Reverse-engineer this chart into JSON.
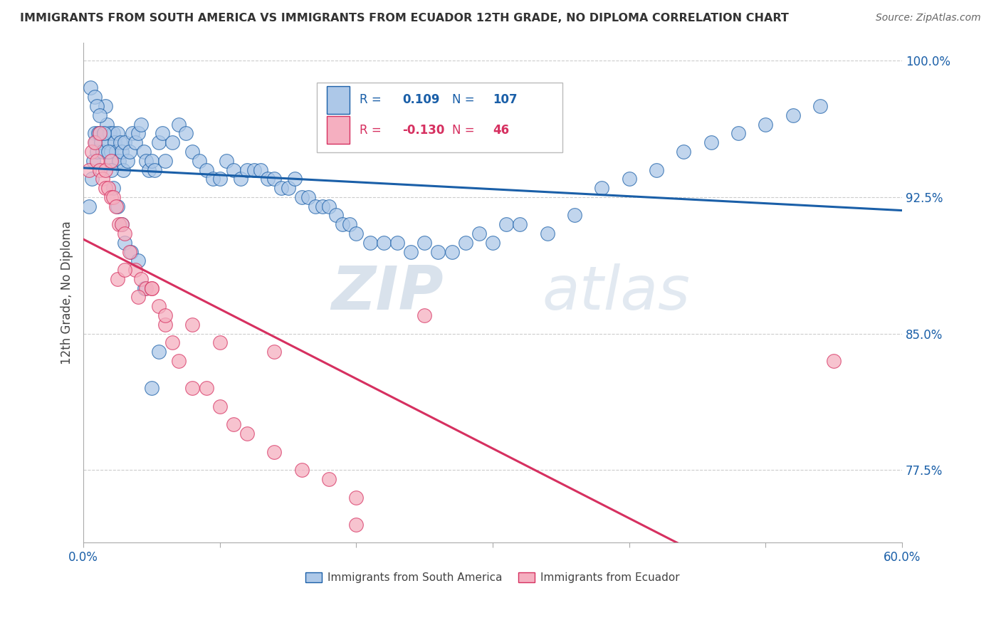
{
  "title": "IMMIGRANTS FROM SOUTH AMERICA VS IMMIGRANTS FROM ECUADOR 12TH GRADE, NO DIPLOMA CORRELATION CHART",
  "source": "Source: ZipAtlas.com",
  "ylabel": "12th Grade, No Diploma",
  "xlim": [
    0.0,
    0.6
  ],
  "ylim": [
    0.735,
    1.01
  ],
  "xticks": [
    0.0,
    0.1,
    0.2,
    0.3,
    0.4,
    0.5,
    0.6
  ],
  "xticklabels": [
    "0.0%",
    "",
    "",
    "",
    "",
    "",
    "60.0%"
  ],
  "yticks": [
    0.775,
    0.85,
    0.925,
    1.0
  ],
  "yticklabels": [
    "77.5%",
    "85.0%",
    "92.5%",
    "100.0%"
  ],
  "blue_R": 0.109,
  "blue_N": 107,
  "pink_R": -0.13,
  "pink_N": 46,
  "blue_color": "#adc8e8",
  "pink_color": "#f5afc0",
  "blue_line_color": "#1a5fa8",
  "pink_line_color": "#d63060",
  "legend_label_blue": "Immigrants from South America",
  "legend_label_pink": "Immigrants from Ecuador",
  "watermark_zip": "ZIP",
  "watermark_atlas": "atlas",
  "blue_scatter_x": [
    0.004,
    0.006,
    0.007,
    0.008,
    0.009,
    0.01,
    0.011,
    0.012,
    0.013,
    0.014,
    0.015,
    0.016,
    0.017,
    0.018,
    0.019,
    0.02,
    0.021,
    0.022,
    0.023,
    0.024,
    0.025,
    0.026,
    0.027,
    0.028,
    0.029,
    0.03,
    0.032,
    0.034,
    0.036,
    0.038,
    0.04,
    0.042,
    0.044,
    0.046,
    0.048,
    0.05,
    0.052,
    0.055,
    0.058,
    0.06,
    0.065,
    0.07,
    0.075,
    0.08,
    0.085,
    0.09,
    0.095,
    0.1,
    0.105,
    0.11,
    0.115,
    0.12,
    0.125,
    0.13,
    0.135,
    0.14,
    0.145,
    0.15,
    0.155,
    0.16,
    0.165,
    0.17,
    0.175,
    0.18,
    0.185,
    0.19,
    0.195,
    0.2,
    0.21,
    0.22,
    0.23,
    0.24,
    0.25,
    0.26,
    0.27,
    0.28,
    0.29,
    0.3,
    0.31,
    0.32,
    0.34,
    0.36,
    0.38,
    0.4,
    0.42,
    0.44,
    0.46,
    0.48,
    0.5,
    0.52,
    0.54,
    0.005,
    0.008,
    0.01,
    0.012,
    0.015,
    0.018,
    0.02,
    0.022,
    0.025,
    0.028,
    0.03,
    0.035,
    0.04,
    0.045,
    0.05,
    0.055
  ],
  "blue_scatter_y": [
    0.92,
    0.935,
    0.945,
    0.96,
    0.955,
    0.95,
    0.96,
    0.96,
    0.955,
    0.95,
    0.96,
    0.975,
    0.965,
    0.955,
    0.96,
    0.95,
    0.945,
    0.96,
    0.955,
    0.95,
    0.96,
    0.945,
    0.955,
    0.95,
    0.94,
    0.955,
    0.945,
    0.95,
    0.96,
    0.955,
    0.96,
    0.965,
    0.95,
    0.945,
    0.94,
    0.945,
    0.94,
    0.955,
    0.96,
    0.945,
    0.955,
    0.965,
    0.96,
    0.95,
    0.945,
    0.94,
    0.935,
    0.935,
    0.945,
    0.94,
    0.935,
    0.94,
    0.94,
    0.94,
    0.935,
    0.935,
    0.93,
    0.93,
    0.935,
    0.925,
    0.925,
    0.92,
    0.92,
    0.92,
    0.915,
    0.91,
    0.91,
    0.905,
    0.9,
    0.9,
    0.9,
    0.895,
    0.9,
    0.895,
    0.895,
    0.9,
    0.905,
    0.9,
    0.91,
    0.91,
    0.905,
    0.915,
    0.93,
    0.935,
    0.94,
    0.95,
    0.955,
    0.96,
    0.965,
    0.97,
    0.975,
    0.985,
    0.98,
    0.975,
    0.97,
    0.96,
    0.95,
    0.94,
    0.93,
    0.92,
    0.91,
    0.9,
    0.895,
    0.89,
    0.875,
    0.82,
    0.84
  ],
  "pink_scatter_x": [
    0.004,
    0.006,
    0.008,
    0.01,
    0.012,
    0.014,
    0.016,
    0.018,
    0.02,
    0.022,
    0.024,
    0.026,
    0.028,
    0.03,
    0.034,
    0.038,
    0.042,
    0.046,
    0.05,
    0.055,
    0.06,
    0.065,
    0.07,
    0.08,
    0.09,
    0.1,
    0.11,
    0.12,
    0.14,
    0.16,
    0.18,
    0.2,
    0.012,
    0.016,
    0.02,
    0.025,
    0.03,
    0.04,
    0.05,
    0.06,
    0.08,
    0.1,
    0.14,
    0.2,
    0.25,
    0.55
  ],
  "pink_scatter_y": [
    0.94,
    0.95,
    0.955,
    0.945,
    0.94,
    0.935,
    0.93,
    0.93,
    0.925,
    0.925,
    0.92,
    0.91,
    0.91,
    0.905,
    0.895,
    0.885,
    0.88,
    0.875,
    0.875,
    0.865,
    0.855,
    0.845,
    0.835,
    0.82,
    0.82,
    0.81,
    0.8,
    0.795,
    0.785,
    0.775,
    0.77,
    0.76,
    0.96,
    0.94,
    0.945,
    0.88,
    0.885,
    0.87,
    0.875,
    0.86,
    0.855,
    0.845,
    0.84,
    0.745,
    0.86,
    0.835
  ]
}
